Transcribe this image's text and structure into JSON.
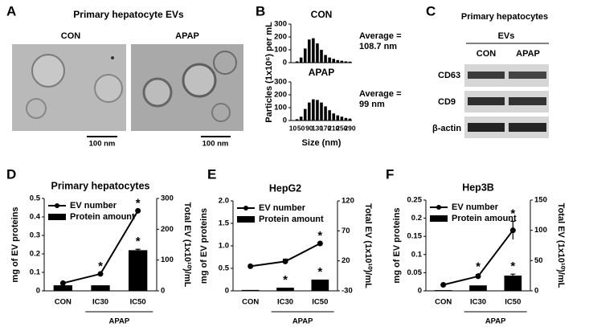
{
  "panels": {
    "labels": [
      "A",
      "B",
      "C",
      "D",
      "E",
      "F"
    ]
  },
  "panel_a": {
    "title": "Primary hepatocyte  EVs",
    "images": [
      {
        "label": "CON",
        "scale": "100 nm"
      },
      {
        "label": "APAP",
        "scale": "100 nm"
      }
    ]
  },
  "panel_c": {
    "title": "Primary hepatocytes",
    "group": "EVs",
    "columns": [
      "CON",
      "APAP"
    ],
    "rows": [
      "CD63",
      "CD9",
      "β-actin"
    ]
  },
  "chart_data": [
    {
      "type": "bar",
      "title": "CON",
      "ylabel": "Particles (1x10⁶) per mL",
      "annotation": [
        "Average =",
        "108.7 nm"
      ],
      "values": [
        0,
        10,
        40,
        110,
        180,
        190,
        150,
        100,
        60,
        40,
        30,
        20,
        15,
        10,
        8
      ],
      "color": "#000000",
      "ylim": [
        0,
        300
      ],
      "yticks": [
        0,
        100,
        200,
        300
      ]
    },
    {
      "type": "bar",
      "title": "APAP",
      "xlabel": "Size (nm)",
      "annotation": [
        "Average =",
        "99 nm"
      ],
      "categories": [
        "10",
        null,
        "50",
        null,
        "90",
        null,
        "130",
        null,
        "170",
        null,
        "210",
        null,
        "250",
        null,
        "290"
      ],
      "values": [
        0,
        10,
        30,
        90,
        140,
        165,
        160,
        140,
        110,
        80,
        55,
        40,
        30,
        20,
        15
      ],
      "color": "#000000",
      "ylim": [
        0,
        300
      ],
      "yticks": [
        0,
        100,
        200,
        300
      ]
    },
    {
      "type": "combo",
      "title": "Primary hepatocytes",
      "ylabel": "mg of EV proteins",
      "y2label": "Total EV (1x10¹⁰)/mL",
      "categories": [
        "CON",
        "IC30",
        "IC50"
      ],
      "group": {
        "label": "APAP",
        "categories": [
          "IC30",
          "IC50"
        ]
      },
      "series": [
        {
          "name": "EV number",
          "kind": "line",
          "axis": "y2",
          "color": "#000000",
          "values": [
            25,
            55,
            260
          ]
        },
        {
          "name": "Protein amount",
          "kind": "bar",
          "color": "#000000",
          "values": [
            0.03,
            0.03,
            0.22
          ],
          "errors": [
            null,
            null,
            0.005
          ]
        }
      ],
      "ylim": [
        0,
        0.5
      ],
      "yticks": [
        0,
        0.1,
        0.2,
        0.3,
        0.4,
        0.5
      ],
      "y2lim": [
        0,
        300
      ],
      "y2ticks": [
        0,
        100,
        200,
        300
      ],
      "annotations": [
        {
          "text": "*",
          "series": "EV number",
          "category": "IC30"
        },
        {
          "text": "*",
          "series": "EV number",
          "category": "IC50"
        },
        {
          "text": "*",
          "series": "Protein amount",
          "category": "IC50"
        }
      ]
    },
    {
      "type": "combo",
      "title": "HepG2",
      "ylabel": "mg of EV proteins",
      "y2label": "Total EV (1x10¹⁰)/mL",
      "categories": [
        "CON",
        "IC30",
        "IC50"
      ],
      "group": {
        "label": "APAP",
        "categories": [
          "IC30",
          "IC50"
        ]
      },
      "series": [
        {
          "name": "EV number",
          "kind": "line",
          "axis": "y2",
          "color": "#000000",
          "values": [
            11,
            19,
            49
          ],
          "errors": [
            null,
            4,
            null
          ]
        },
        {
          "name": "Protein amount",
          "kind": "bar",
          "color": "#000000",
          "values": [
            0.02,
            0.07,
            0.25
          ]
        }
      ],
      "ylim": [
        0,
        2
      ],
      "yticks": [
        0,
        0.5,
        {
          "value": 1,
          "label": "1.0"
        },
        1.5,
        {
          "value": 2,
          "label": "2.0"
        }
      ],
      "y2lim": [
        -30,
        120
      ],
      "y2ticks": [
        -30,
        20,
        70,
        120
      ],
      "annotations": [
        {
          "text": "*",
          "series": "Protein amount",
          "category": "IC30"
        },
        {
          "text": "*",
          "series": "EV number",
          "category": "IC50"
        },
        {
          "text": "*",
          "series": "Protein amount",
          "category": "IC50"
        }
      ]
    },
    {
      "type": "combo",
      "title": "Hep3B",
      "ylabel": "mg of EV proteins",
      "y2label": "Total EV (1x10¹⁰)/mL",
      "categories": [
        "CON",
        "IC30",
        "IC50"
      ],
      "group": {
        "label": "APAP",
        "categories": [
          "IC30",
          "IC50"
        ]
      },
      "series": [
        {
          "name": "EV number",
          "kind": "line",
          "axis": "y2",
          "color": "#000000",
          "values": [
            10,
            24,
            100
          ],
          "errors": [
            null,
            3,
            15
          ]
        },
        {
          "name": "Protein amount",
          "kind": "bar",
          "color": "#000000",
          "values": [
            0.002,
            0.015,
            0.042
          ],
          "errors": [
            null,
            null,
            0.004
          ]
        }
      ],
      "ylim": [
        0,
        0.25
      ],
      "yticks": [
        0,
        0.05,
        0.1,
        0.15,
        0.2,
        0.25
      ],
      "y2lim": [
        0,
        150
      ],
      "y2ticks": [
        0,
        50,
        100,
        150
      ],
      "annotations": [
        {
          "text": "*",
          "series": "EV number",
          "category": "IC30"
        },
        {
          "text": "*",
          "series": "Protein amount",
          "category": "IC30"
        },
        {
          "text": "*",
          "series": "EV number",
          "category": "IC50"
        },
        {
          "text": "*",
          "series": "Protein amount",
          "category": "IC50"
        }
      ]
    }
  ]
}
